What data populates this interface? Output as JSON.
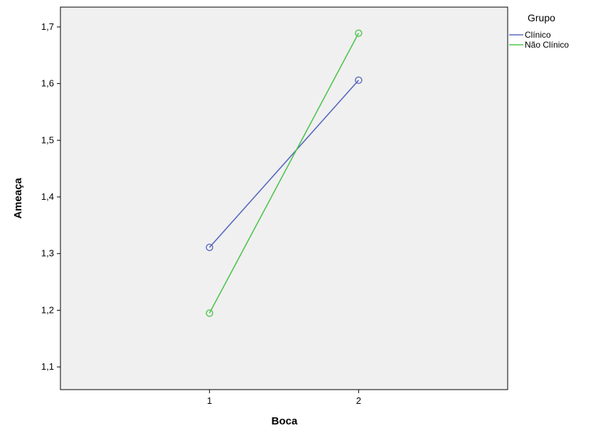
{
  "chart_data": {
    "type": "line",
    "xlabel": "Boca",
    "ylabel": "Ameaça",
    "x": [
      1,
      2
    ],
    "x_tick_labels": [
      "1",
      "2"
    ],
    "xlim": [
      0,
      3
    ],
    "ylim": [
      1.06,
      1.735
    ],
    "y_ticks": [
      1.1,
      1.2,
      1.3,
      1.4,
      1.5,
      1.6,
      1.7
    ],
    "y_tick_labels": [
      "1,1",
      "1,2",
      "1,3",
      "1,4",
      "1,5",
      "1,6",
      "1,7"
    ],
    "grid": false,
    "plot_background": "#f0f0f0",
    "legend": {
      "title": "Grupo",
      "placement": "outside-right-top"
    },
    "series": [
      {
        "name": "Clínico",
        "color": "#5b6bbf",
        "values": [
          1.311,
          1.606
        ],
        "marker": "circle"
      },
      {
        "name": "Não Clínico",
        "color": "#4fc54f",
        "values": [
          1.195,
          1.689
        ],
        "marker": "circle"
      }
    ]
  }
}
